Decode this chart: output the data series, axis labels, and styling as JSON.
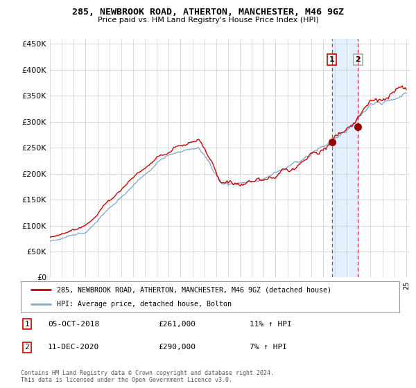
{
  "title": "285, NEWBROOK ROAD, ATHERTON, MANCHESTER, M46 9GZ",
  "subtitle": "Price paid vs. HM Land Registry's House Price Index (HPI)",
  "ylabel_ticks": [
    "£0",
    "£50K",
    "£100K",
    "£150K",
    "£200K",
    "£250K",
    "£300K",
    "£350K",
    "£400K",
    "£450K"
  ],
  "ytick_values": [
    0,
    50000,
    100000,
    150000,
    200000,
    250000,
    300000,
    350000,
    400000,
    450000
  ],
  "ylim": [
    0,
    460000
  ],
  "legend_line1": "285, NEWBROOK ROAD, ATHERTON, MANCHESTER, M46 9GZ (detached house)",
  "legend_line2": "HPI: Average price, detached house, Bolton",
  "sale1_date": "05-OCT-2018",
  "sale1_price": "£261,000",
  "sale1_hpi": "11% ↑ HPI",
  "sale2_date": "11-DEC-2020",
  "sale2_price": "£290,000",
  "sale2_hpi": "7% ↑ HPI",
  "footer": "Contains HM Land Registry data © Crown copyright and database right 2024.\nThis data is licensed under the Open Government Licence v3.0.",
  "color_red": "#cc0000",
  "color_blue": "#88aacc",
  "color_highlight": "#ddeeff",
  "sale1_year": 2018.75,
  "sale2_year": 2020.95,
  "sale1_price_val": 261000,
  "sale2_price_val": 290000,
  "background": "#ffffff",
  "grid_color": "#cccccc"
}
